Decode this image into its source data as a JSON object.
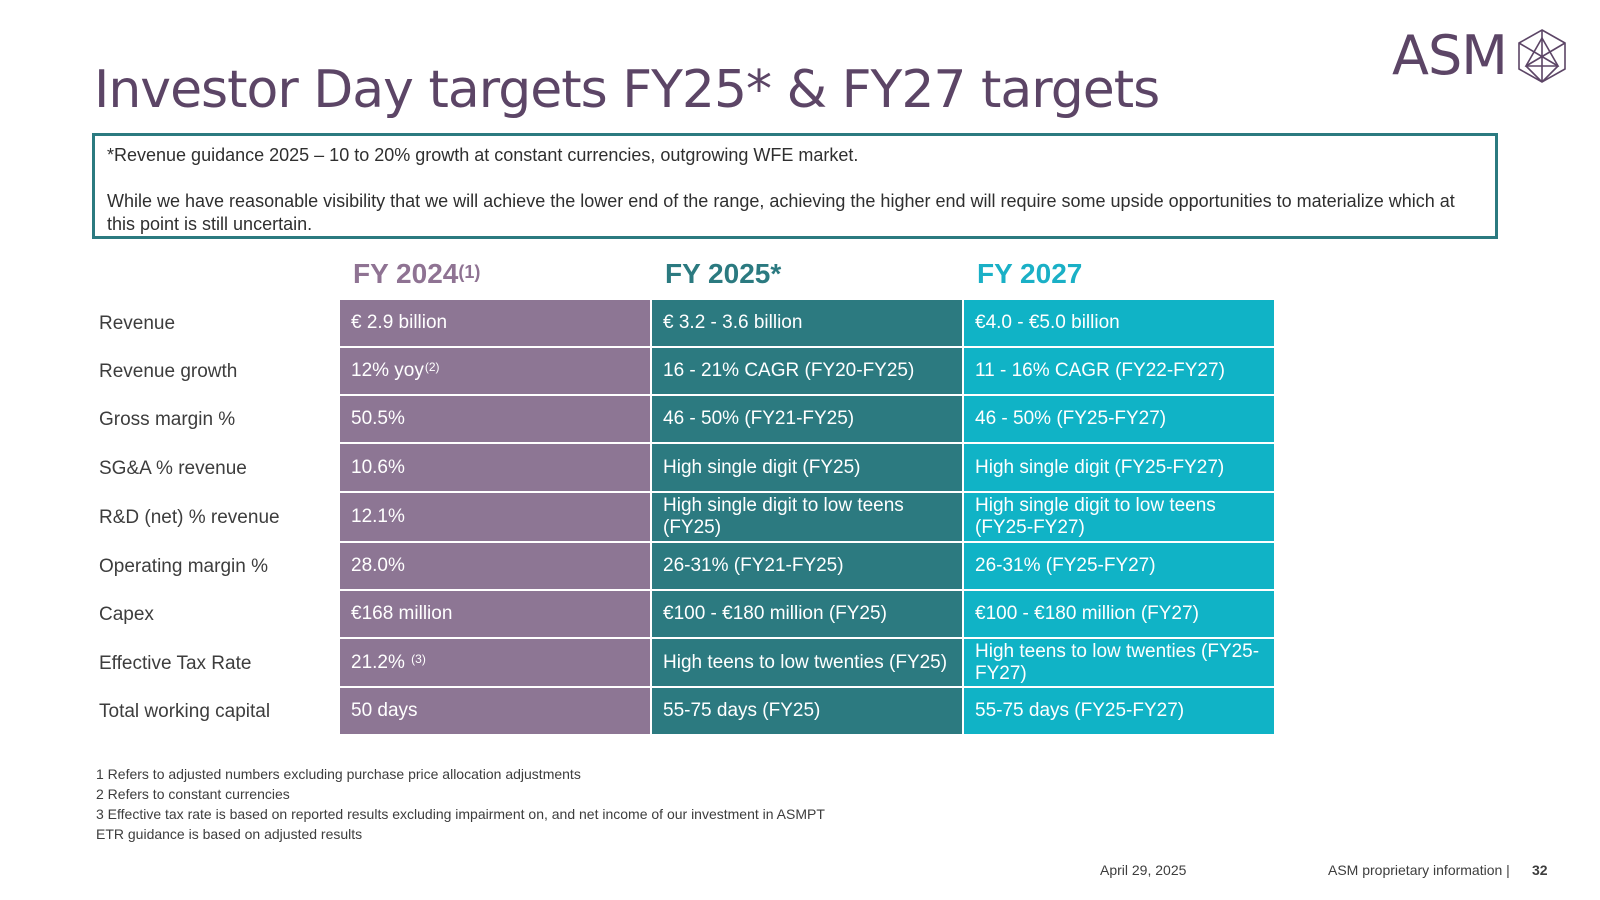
{
  "logo": {
    "text": "ASM",
    "icon": "crystal-polyhedron-icon",
    "color": "#5c4566"
  },
  "title": "Investor Day targets FY25* & FY27 targets",
  "note": {
    "line1": "*Revenue guidance 2025 – 10 to 20% growth at constant currencies, outgrowing WFE market.",
    "line2": "While we have reasonable visibility that we will achieve the lower end of the range, achieving the higher end will require some upside opportunities to materialize which at this point is still uncertain."
  },
  "columns": {
    "fy2024": {
      "label": "FY 2024",
      "sup": "(1)",
      "color": "#8d7694"
    },
    "fy2025": {
      "label": "FY 2025*",
      "color": "#2c7a80"
    },
    "fy2027": {
      "label": "FY 2027",
      "color": "#10b3c6"
    }
  },
  "rows": [
    {
      "label": "Revenue",
      "fy2024": "€ 2.9 billion",
      "fy2025": "€ 3.2 - 3.6 billion",
      "fy2027": "€4.0 - €5.0 billion"
    },
    {
      "label": "Revenue growth",
      "fy2024": "12% yoy",
      "fy2024_sup": "(2)",
      "fy2025": "16 - 21% CAGR (FY20-FY25)",
      "fy2027": "11 - 16% CAGR (FY22-FY27)"
    },
    {
      "label": "Gross margin %",
      "fy2024": "50.5%",
      "fy2025": "46 - 50% (FY21-FY25)",
      "fy2027": "46 - 50% (FY25-FY27)"
    },
    {
      "label": "SG&A % revenue",
      "fy2024": "10.6%",
      "fy2025": "High single digit (FY25)",
      "fy2027": "High single digit (FY25-FY27)"
    },
    {
      "label": "R&D (net) % revenue",
      "fy2024": "12.1%",
      "fy2025": "High single digit to low teens (FY25)",
      "fy2027": "High single digit to low teens (FY25-FY27)"
    },
    {
      "label": "Operating margin %",
      "fy2024": "28.0%",
      "fy2025": "26-31% (FY21-FY25)",
      "fy2027": "26-31% (FY25-FY27)"
    },
    {
      "label": "Capex",
      "fy2024": "€168 million",
      "fy2025": "€100 - €180 million (FY25)",
      "fy2027": "€100 - €180 million (FY27)"
    },
    {
      "label": "Effective Tax Rate",
      "fy2024": "21.2% ",
      "fy2024_sup": "(3)",
      "fy2025": "High teens to low twenties (FY25)",
      "fy2027": "High teens to low twenties (FY25-FY27)"
    },
    {
      "label": "Total working capital",
      "fy2024": "50 days",
      "fy2025": "55-75 days (FY25)",
      "fy2027": "55-75 days (FY25-FY27)"
    }
  ],
  "footnotes": [
    "1 Refers to adjusted numbers excluding purchase price allocation adjustments",
    "2 Refers to constant currencies",
    "3 Effective tax rate is based on reported results excluding impairment on, and net income of our investment in ASMPT",
    "ETR guidance is based on adjusted results"
  ],
  "footer": {
    "date": "April 29, 2025",
    "proprietary": "ASM proprietary information |",
    "page": "32"
  }
}
